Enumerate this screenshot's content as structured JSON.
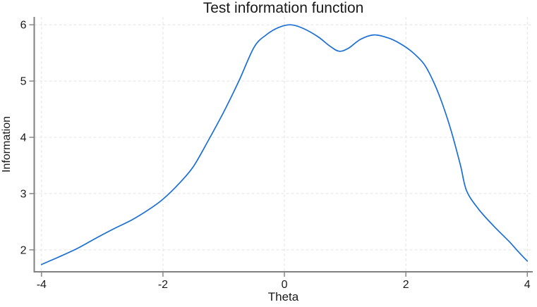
{
  "chart_data": {
    "type": "line",
    "title": "Test information function",
    "xlabel": "Theta",
    "ylabel": "Information",
    "x_ticks": [
      -4,
      -2,
      0,
      2,
      4
    ],
    "y_ticks": [
      2,
      3,
      4,
      5,
      6
    ],
    "xlim": [
      -4.12,
      4.09
    ],
    "ylim": [
      1.61,
      6.14
    ],
    "grid": true,
    "legend": "none",
    "colors": {
      "line": "#1a6fd4",
      "axis": "#808080",
      "grid": "#e4e4e4",
      "text": "#1a1a1a",
      "background": "#ffffff"
    },
    "series": [
      {
        "name": "Test information",
        "points": [
          [
            -4.0,
            1.74
          ],
          [
            -3.7,
            1.88
          ],
          [
            -3.4,
            2.03
          ],
          [
            -3.1,
            2.21
          ],
          [
            -2.8,
            2.38
          ],
          [
            -2.5,
            2.54
          ],
          [
            -2.2,
            2.74
          ],
          [
            -2.0,
            2.9
          ],
          [
            -1.75,
            3.16
          ],
          [
            -1.5,
            3.48
          ],
          [
            -1.25,
            3.95
          ],
          [
            -1.0,
            4.45
          ],
          [
            -0.75,
            5.0
          ],
          [
            -0.5,
            5.6
          ],
          [
            -0.3,
            5.82
          ],
          [
            -0.1,
            5.95
          ],
          [
            0.1,
            6.0
          ],
          [
            0.3,
            5.94
          ],
          [
            0.55,
            5.79
          ],
          [
            0.75,
            5.62
          ],
          [
            0.9,
            5.53
          ],
          [
            1.05,
            5.58
          ],
          [
            1.25,
            5.74
          ],
          [
            1.47,
            5.82
          ],
          [
            1.7,
            5.77
          ],
          [
            1.9,
            5.67
          ],
          [
            2.1,
            5.52
          ],
          [
            2.3,
            5.3
          ],
          [
            2.45,
            5.0
          ],
          [
            2.6,
            4.6
          ],
          [
            2.75,
            4.1
          ],
          [
            2.9,
            3.5
          ],
          [
            3.0,
            3.05
          ],
          [
            3.2,
            2.72
          ],
          [
            3.45,
            2.42
          ],
          [
            3.7,
            2.15
          ],
          [
            3.85,
            1.97
          ],
          [
            4.0,
            1.8
          ]
        ]
      }
    ],
    "annotations": {
      "peak_1": {
        "theta": 0.1,
        "information": 6.0
      },
      "local_min": {
        "theta": 0.9,
        "information": 5.53
      },
      "peak_2": {
        "theta": 1.47,
        "information": 5.82
      }
    }
  }
}
